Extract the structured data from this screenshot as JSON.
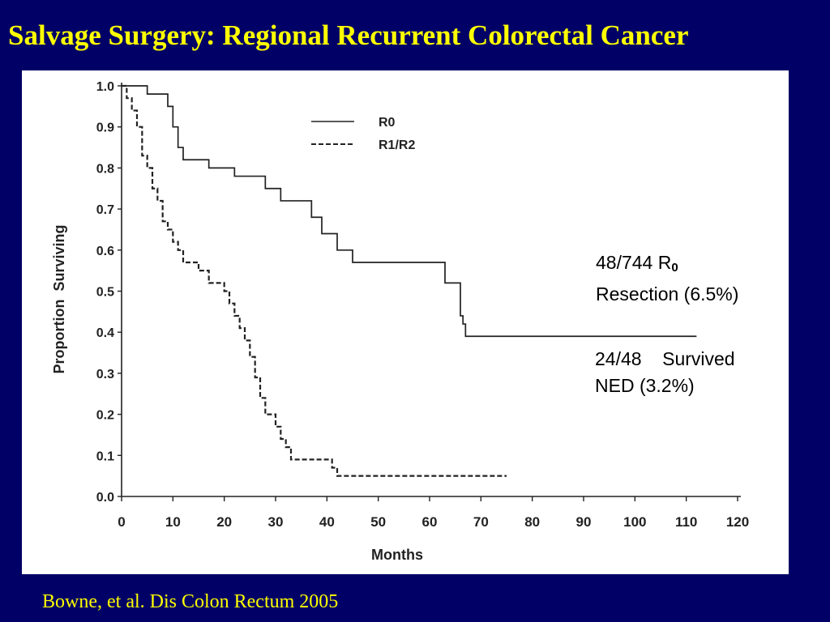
{
  "slide": {
    "title": "Salvage Surgery: Regional Recurrent Colorectal Cancer",
    "citation": "Bowne, et al. Dis Colon Rectum 2005",
    "annotations": [
      {
        "line1": "48/744 R",
        "line1_sub": "0",
        "line2": "Resection (6.5%)"
      },
      {
        "line1": "24/48    Survived",
        "line2": "NED (3.2%)"
      }
    ]
  },
  "colors": {
    "background": "#000066",
    "title": "#ffff00",
    "plot_panel": "#ffffff",
    "line": "#222222"
  },
  "chart_data": {
    "type": "line",
    "xlabel": "Months",
    "ylabel": "Proportion  Surviving",
    "xlim": [
      0,
      120
    ],
    "ylim": [
      0.0,
      1.0
    ],
    "xticks": [
      "0",
      "10",
      "20",
      "30",
      "40",
      "50",
      "60",
      "70",
      "80",
      "90",
      "100",
      "110",
      "120"
    ],
    "yticks": [
      "0.0",
      "0.1",
      "0.2",
      "0.3",
      "0.4",
      "0.5",
      "0.6",
      "0.7",
      "0.8",
      "0.9",
      "1.0"
    ],
    "grid": false,
    "legend_position": "top-center",
    "step": true,
    "series": [
      {
        "name": "R0",
        "style": "solid",
        "x": [
          0,
          5,
          9,
          10,
          11,
          12,
          17,
          22,
          28,
          31,
          37,
          39,
          42,
          45,
          63,
          66,
          66.5,
          67,
          112
        ],
        "y": [
          1.0,
          0.98,
          0.95,
          0.9,
          0.85,
          0.82,
          0.8,
          0.78,
          0.75,
          0.72,
          0.68,
          0.64,
          0.6,
          0.57,
          0.52,
          0.44,
          0.42,
          0.39,
          0.39
        ]
      },
      {
        "name": "R1/R2",
        "style": "dashed",
        "x": [
          0,
          1,
          2,
          3,
          4,
          5,
          6,
          7,
          8,
          9,
          10,
          11,
          12,
          15,
          17,
          20,
          21,
          22,
          23,
          24,
          25,
          26,
          27,
          28,
          30,
          31,
          32,
          33,
          41,
          42,
          75
        ],
        "y": [
          1.0,
          0.97,
          0.94,
          0.9,
          0.83,
          0.8,
          0.75,
          0.72,
          0.67,
          0.65,
          0.62,
          0.6,
          0.57,
          0.55,
          0.52,
          0.5,
          0.47,
          0.44,
          0.41,
          0.38,
          0.34,
          0.29,
          0.24,
          0.2,
          0.17,
          0.14,
          0.12,
          0.09,
          0.07,
          0.05,
          0.05
        ]
      }
    ]
  }
}
